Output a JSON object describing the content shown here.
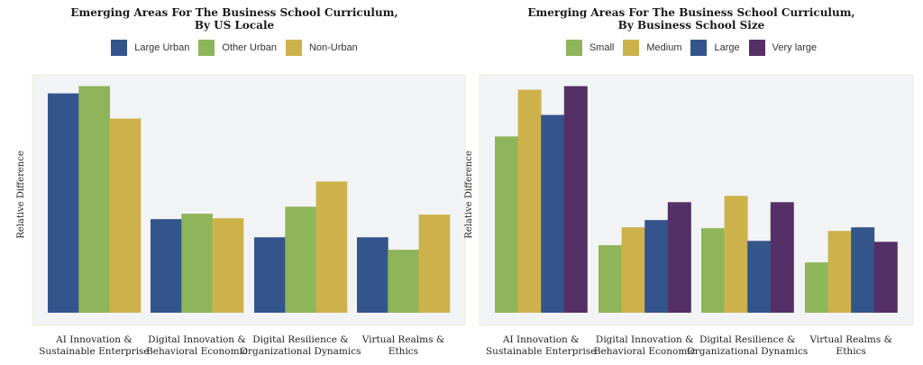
{
  "chart_data": [
    {
      "type": "bar",
      "title": [
        "Emerging Areas For The Business School Curriculum,",
        "By US Locale"
      ],
      "xlabel": "",
      "ylabel": "Relative Difference",
      "ylim": [
        0,
        105
      ],
      "grid": false,
      "legend_position": "top-center",
      "categories": [
        [
          "AI Innovation &",
          "Sustainable Enterprise"
        ],
        [
          "Digital Innovation &",
          "Behavioral Economic"
        ],
        [
          "Digital Resilience &",
          "Organizational Dynamics"
        ],
        [
          "Virtual Realms &",
          "Ethics"
        ]
      ],
      "series": [
        {
          "name": "Large Urban",
          "color": "#34558b",
          "values": [
            96.8,
            41.3,
            33.3,
            33.3
          ]
        },
        {
          "name": "Other Urban",
          "color": "#8fb55a",
          "values": [
            100,
            43.7,
            46.8,
            27.8
          ]
        },
        {
          "name": "Non-Urban",
          "color": "#cdb24c",
          "values": [
            85.7,
            41.7,
            57.9,
            43.3
          ]
        }
      ],
      "plot_background": "#f2f3f5",
      "plot_border": "#f0ecd8"
    },
    {
      "type": "bar",
      "title": [
        "Emerging Areas For The Business School Curriculum,",
        "By Business School Size"
      ],
      "xlabel": "",
      "ylabel": "Relative Difference",
      "ylim": [
        0,
        105
      ],
      "grid": false,
      "legend_position": "top-center",
      "categories": [
        [
          "AI Innovation &",
          "Sustainable Enterprise"
        ],
        [
          "Digital Innovation &",
          "Behavioral Economic"
        ],
        [
          "Digital Resilience &",
          "Organizational Dynamics"
        ],
        [
          "Virtual Realms &",
          "Ethics"
        ]
      ],
      "series": [
        {
          "name": "Small",
          "color": "#8fb55a",
          "values": [
            77.8,
            29.8,
            37.3,
            22.2
          ]
        },
        {
          "name": "Medium",
          "color": "#cdb24c",
          "values": [
            98.4,
            37.7,
            51.6,
            36.1
          ]
        },
        {
          "name": "Large",
          "color": "#34558b",
          "values": [
            87.3,
            40.9,
            31.7,
            37.7
          ]
        },
        {
          "name": "Very large",
          "color": "#553066",
          "values": [
            100,
            48.8,
            48.8,
            31.3
          ]
        }
      ],
      "plot_background": "#f2f3f5",
      "plot_border": "#f0ecd8"
    }
  ]
}
